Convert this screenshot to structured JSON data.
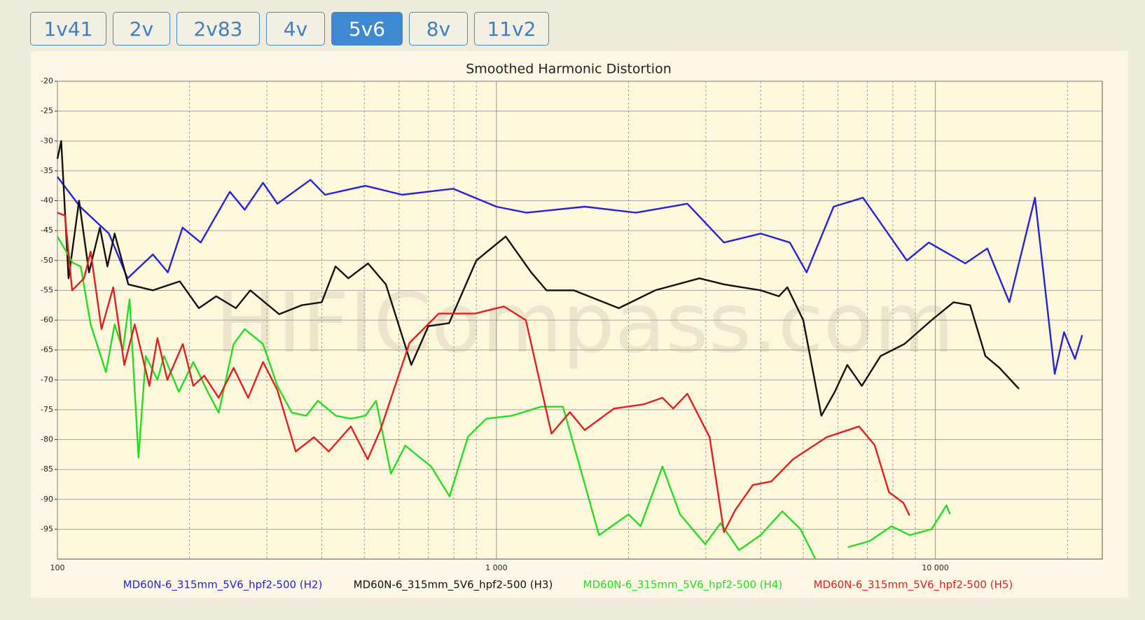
{
  "tabs": [
    {
      "label": "1v41"
    },
    {
      "label": "2v"
    },
    {
      "label": "2v83"
    },
    {
      "label": "4v"
    },
    {
      "label": "5v6",
      "active": true
    },
    {
      "label": "8v"
    },
    {
      "label": "11v2"
    }
  ],
  "chart_data": {
    "type": "line",
    "title": "Smoothed Harmonic Distortion",
    "watermark": "HIFICompass.com",
    "log_x": true,
    "grid": true,
    "xlim": [
      100,
      24000
    ],
    "ylim": [
      -100,
      -20
    ],
    "xticks": [
      100,
      {
        "value": 1000,
        "label": "1 000"
      },
      {
        "value": 10000,
        "label": "10 000"
      }
    ],
    "xminorticks": [
      200,
      300,
      400,
      500,
      600,
      700,
      800,
      900,
      2000,
      3000,
      4000,
      5000,
      6000,
      7000,
      8000,
      9000,
      20000
    ],
    "yticks": [
      -20,
      -25,
      -30,
      -35,
      -40,
      -45,
      -50,
      -55,
      -60,
      -65,
      -70,
      -75,
      -80,
      -85,
      -90,
      -95
    ],
    "series": [
      {
        "name": "MD60N-6_315mm_5V6_hpf2-500 (H2)",
        "color": "#2323d8",
        "x": [
          100,
          112.6,
          131,
          144.5,
          165,
          178.5,
          192.8,
          212,
          247,
          267,
          294,
          317,
          377,
          407,
          503,
          610,
          797,
          1000,
          1170,
          1591,
          2080,
          2723,
          3299,
          4000,
          4660,
          5090,
          5865,
          6840,
          8610,
          9660,
          11700,
          13130,
          14740,
          16860,
          18700,
          19640,
          20800,
          21610
        ],
        "values": [
          -36,
          -41,
          -45.5,
          -53,
          -49,
          -52,
          -44.5,
          -47,
          -38.5,
          -41.5,
          -37,
          -40.5,
          -36.5,
          -39,
          -37.5,
          -39,
          -38,
          -41,
          -42,
          -41,
          -42,
          -40.5,
          -47,
          -45.5,
          -47,
          -52,
          -41,
          -39.5,
          -50,
          -47,
          -50.5,
          -48,
          -57,
          -39.5,
          -69,
          -62,
          -66.5,
          -62.5
        ]
      },
      {
        "name": "MD60N-6_315mm_5V6_hpf2-500 (H3)",
        "color": "#111111",
        "x": [
          100,
          102,
          106,
          112,
          118,
          125,
          130,
          135,
          145,
          165,
          190,
          210,
          230,
          255,
          275,
          320,
          360,
          400,
          430,
          460,
          510,
          560,
          640,
          700,
          780,
          900,
          1050,
          1200,
          1300,
          1500,
          1900,
          2300,
          2900,
          3300,
          4000,
          4400,
          4600,
          5000,
          5500,
          5900,
          6300,
          6800,
          7500,
          8500,
          9800,
          11000,
          12000,
          13000,
          14000,
          15500
        ],
        "values": [
          -33,
          -30,
          -53,
          -40,
          -52,
          -44.5,
          -51,
          -45.5,
          -54,
          -55,
          -53.5,
          -58,
          -56,
          -58,
          -55,
          -59,
          -57.5,
          -57,
          -51,
          -53,
          -50.5,
          -54,
          -67.5,
          -61,
          -60.5,
          -50,
          -46,
          -52,
          -55,
          -55,
          -58,
          -55,
          -53,
          -54,
          -55,
          -56,
          -54.5,
          -60,
          -76,
          -72,
          -67.5,
          -71,
          -66,
          -64,
          -60,
          -57,
          -57.5,
          -66,
          -68,
          -71.5
        ]
      },
      {
        "name": "MD60N-6_315mm_5V6_hpf2-500 (H4)",
        "color": "#22dd22",
        "x": [
          100,
          108.4,
          113,
          119,
          129,
          135,
          141,
          146,
          153,
          159,
          169,
          175,
          189,
          204,
          220,
          233,
          252,
          267,
          294,
          317,
          342,
          369,
          392,
          431,
          466,
          503,
          532,
          575,
          620,
          710,
          782,
          862,
          948,
          1085,
          1263,
          1418,
          1713,
          2000,
          2130,
          2390,
          2620,
          2990,
          3240,
          3570,
          4000,
          4480,
          4930,
          5330,
          null,
          6320,
          7080,
          7940,
          8740,
          9800,
          10600,
          10800
        ],
        "values": [
          -46,
          -50.4,
          -51,
          -60.7,
          -68.7,
          -60.7,
          -65,
          -56.5,
          -83,
          -66,
          -70,
          -66,
          -72,
          -67,
          -72,
          -75.5,
          -64,
          -61.5,
          -64,
          -71,
          -75.5,
          -76,
          -73.5,
          -76,
          -76.5,
          -76,
          -73.5,
          -85.7,
          -81,
          -84.5,
          -89.5,
          -79.5,
          -76.5,
          -76,
          -74.5,
          -74.5,
          -96,
          -92.5,
          -94.5,
          -84.5,
          -92.5,
          -97.5,
          -94,
          -98.5,
          -96,
          -92,
          -95,
          -100,
          null,
          -98,
          -97,
          -94.5,
          -96,
          -95,
          -91,
          -92.5
        ]
      },
      {
        "name": "MD60N-6_315mm_5V6_hpf2-500 (H5)",
        "color": "#e02020",
        "x": [
          100,
          104,
          108,
          115,
          119,
          126,
          134,
          142,
          150,
          162,
          169,
          178,
          193,
          204,
          216,
          233,
          252,
          272,
          294,
          317,
          349,
          384,
          415,
          466,
          509,
          544,
          634,
          739,
          894,
          1040,
          1167,
          1335,
          1470,
          1589,
          1853,
          2163,
          2390,
          2528,
          2723,
          3060,
          3299,
          3500,
          3838,
          4229,
          4740,
          5650,
          6700,
          7270,
          7840,
          8460,
          8730
        ],
        "values": [
          -42,
          -42.5,
          -55,
          -53,
          -48.5,
          -61.5,
          -54.5,
          -67.5,
          -60.7,
          -71,
          -63,
          -70,
          -64,
          -71,
          -69.3,
          -73,
          -68,
          -73,
          -67,
          -71.7,
          -82,
          -79.6,
          -82,
          -77.8,
          -83.3,
          -78.4,
          -63.8,
          -58.9,
          -58.9,
          -57.7,
          -60,
          -79,
          -75.4,
          -78.4,
          -74.8,
          -74.1,
          -73,
          -74.8,
          -72.3,
          -79.6,
          -95.5,
          -91.8,
          -87.6,
          -87,
          -83.3,
          -79.6,
          -77.8,
          -80.9,
          -88.8,
          -90.6,
          -92.7
        ]
      }
    ]
  }
}
